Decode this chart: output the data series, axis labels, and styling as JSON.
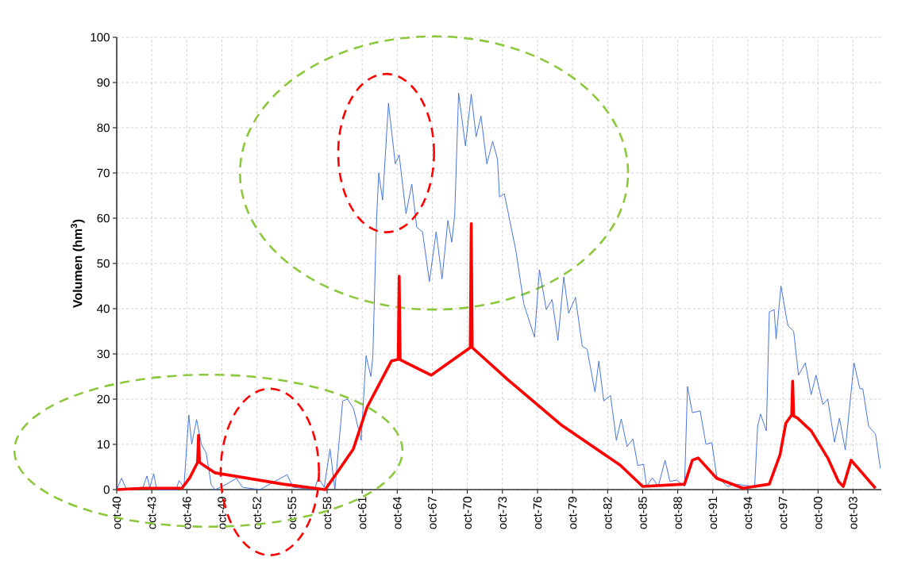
{
  "chart_data": {
    "type": "line",
    "ylabel": "**Volumen (hm$^{3}$)**",
    "xlim": [
      "1940-10",
      "2006-03"
    ],
    "ylim": [
      0,
      100
    ],
    "xticks": [
      {
        "value": "1940-10",
        "label": "oct-40"
      },
      {
        "value": "1943-10",
        "label": "oct-43"
      },
      {
        "value": "1946-10",
        "label": "oct-46"
      },
      {
        "value": "1949-10",
        "label": "oct-49"
      },
      {
        "value": "1952-10",
        "label": "oct-52"
      },
      {
        "value": "1955-10",
        "label": "oct-55"
      },
      {
        "value": "1958-10",
        "label": "oct-58"
      },
      {
        "value": "1961-10",
        "label": "oct-61"
      },
      {
        "value": "1964-10",
        "label": "oct-64"
      },
      {
        "value": "1967-10",
        "label": "oct-67"
      },
      {
        "value": "1970-10",
        "label": "oct-70"
      },
      {
        "value": "1973-10",
        "label": "oct-73"
      },
      {
        "value": "1976-10",
        "label": "oct-76"
      },
      {
        "value": "1979-10",
        "label": "oct-79"
      },
      {
        "value": "1982-10",
        "label": "oct-82"
      },
      {
        "value": "1985-10",
        "label": "oct-85"
      },
      {
        "value": "1988-10",
        "label": "oct-88"
      },
      {
        "value": "1991-10",
        "label": "oct-91"
      },
      {
        "value": "1994-10",
        "label": "oct-94"
      },
      {
        "value": "1997-10",
        "label": "oct-97"
      },
      {
        "value": "2000-10",
        "label": "oct-00"
      },
      {
        "value": "2003-10",
        "label": "oct-03"
      }
    ],
    "yticks": [
      0,
      10,
      20,
      30,
      40,
      50,
      60,
      70,
      80,
      90,
      100
    ],
    "grid": true,
    "series": [
      {
        "color": "#3366dd",
        "x": [
          "1940-10",
          "1941-03",
          "1941-08",
          "1943-01",
          "1943-05",
          "1943-08",
          "1943-12",
          "1944-03",
          "1945-11",
          "1946-02",
          "1946-07",
          "1946-12",
          "1947-03",
          "1947-08",
          "1948-01",
          "1948-06",
          "1948-11",
          "1949-03",
          "1950-01",
          "1951-01",
          "1951-07",
          "1953-01",
          "1955-05",
          "1955-11",
          "1957-09",
          "1958-01",
          "1958-07",
          "1959-01",
          "1959-06",
          "1960-02",
          "1960-07",
          "1961-01",
          "1961-09",
          "1962-02",
          "1962-07",
          "1962-09",
          "1962-12",
          "1963-01",
          "1963-03",
          "1963-07",
          "1964-01",
          "1964-08",
          "1964-12",
          "1965-07",
          "1966-01",
          "1966-06",
          "1966-12",
          "1967-07",
          "1968-02",
          "1968-08",
          "1969-02",
          "1969-06",
          "1969-09",
          "1970-01",
          "1970-08",
          "1971-02",
          "1971-07",
          "1971-12",
          "1972-06",
          "1972-12",
          "1973-05",
          "1973-07",
          "1973-12",
          "1974-12",
          "1975-08",
          "1976-07",
          "1976-12",
          "1977-07",
          "1978-01",
          "1978-07",
          "1979-01",
          "1979-06",
          "1980-01",
          "1980-08",
          "1981-01",
          "1981-09",
          "1982-01",
          "1982-06",
          "1983-01",
          "1983-07",
          "1983-12",
          "1984-06",
          "1984-12",
          "1985-05",
          "1985-11",
          "1986-02",
          "1986-08",
          "1987-02",
          "1987-09",
          "1988-02",
          "1988-09",
          "1989-05",
          "1989-08",
          "1990-01",
          "1990-09",
          "1991-03",
          "1991-09",
          "1992-02",
          "1993-01",
          "1993-09",
          "1995-05",
          "1995-08",
          "1995-11",
          "1996-05",
          "1996-08",
          "1997-01",
          "1997-03",
          "1997-08",
          "1998-03",
          "1998-09",
          "1999-02",
          "1999-09",
          "2000-03",
          "2000-08",
          "2001-03",
          "2001-08",
          "2002-03",
          "2002-08",
          "2003-02",
          "2003-11",
          "2004-05",
          "2004-08",
          "2005-02",
          "2005-09",
          "2006-02"
        ],
        "values": [
          0,
          2.5,
          0,
          0.5,
          3,
          0.5,
          3.5,
          0,
          0,
          2,
          0.5,
          16.5,
          10,
          15.5,
          10,
          8,
          1,
          0,
          1,
          2.5,
          0.5,
          0,
          3.3,
          0.5,
          0,
          2.6,
          0.5,
          9,
          0,
          19.6,
          20,
          18,
          10.9,
          29.6,
          25,
          29.6,
          54,
          60.7,
          70,
          64,
          85.4,
          72,
          74,
          61,
          67.5,
          58,
          57,
          46,
          57,
          46.6,
          59.5,
          54.7,
          60.7,
          87.7,
          76,
          87.4,
          78,
          82.6,
          72,
          77,
          73,
          64.7,
          65.4,
          52.6,
          41,
          33.7,
          48.6,
          39.8,
          42,
          33,
          47,
          39,
          42.5,
          31.7,
          31,
          21.6,
          28.4,
          19.6,
          20.8,
          10.9,
          15.6,
          9.5,
          11.2,
          5.3,
          5.6,
          0.7,
          2.6,
          0.7,
          6.5,
          1.8,
          2.1,
          0.7,
          22.8,
          17,
          17.4,
          10,
          10.4,
          3,
          0.7,
          1.2,
          0.7,
          14,
          16.7,
          13,
          39.3,
          39.8,
          33.3,
          45,
          36.3,
          35,
          25.3,
          28,
          21,
          25.3,
          18.8,
          20,
          10.5,
          15.8,
          8.8,
          28,
          22.3,
          22.3,
          14,
          12.3,
          4.7
        ]
      },
      {
        "color": "#ff0000",
        "x": [
          "1940-10",
          "1943-01",
          "1946-05",
          "1947-01",
          "1947-09",
          "1947-10",
          "1947-11",
          "1949-03",
          "1955-01",
          "1958-08",
          "1959-09",
          "1961-01",
          "1962-03",
          "1964-04",
          "1964-11",
          "1964-12",
          "1965-01",
          "1967-09",
          "1971-01",
          "1971-02",
          "1971-03",
          "1974-03",
          "1978-11",
          "1983-11",
          "1985-10",
          "1989-05",
          "1990-01",
          "1990-07",
          "1992-02",
          "1994-05",
          "1996-08",
          "1997-07",
          "1998-01",
          "1998-07",
          "1998-08",
          "1998-09",
          "1999-01",
          "2000-03",
          "2001-08",
          "2002-07",
          "2002-12",
          "2003-08",
          "2005-09"
        ],
        "values": [
          0,
          0.3,
          0.3,
          2.6,
          6,
          12,
          6,
          3.7,
          1.2,
          0,
          4,
          9,
          18.2,
          28.4,
          28.8,
          47.2,
          28.7,
          25.3,
          31.4,
          58.8,
          31.4,
          24.4,
          14.2,
          5.4,
          0.7,
          1.2,
          6.5,
          7,
          2.5,
          0.3,
          1.2,
          7.7,
          14.7,
          16.5,
          24,
          16.3,
          15.8,
          13,
          7,
          1.8,
          0.7,
          6.5,
          0.3
        ]
      }
    ]
  }
}
